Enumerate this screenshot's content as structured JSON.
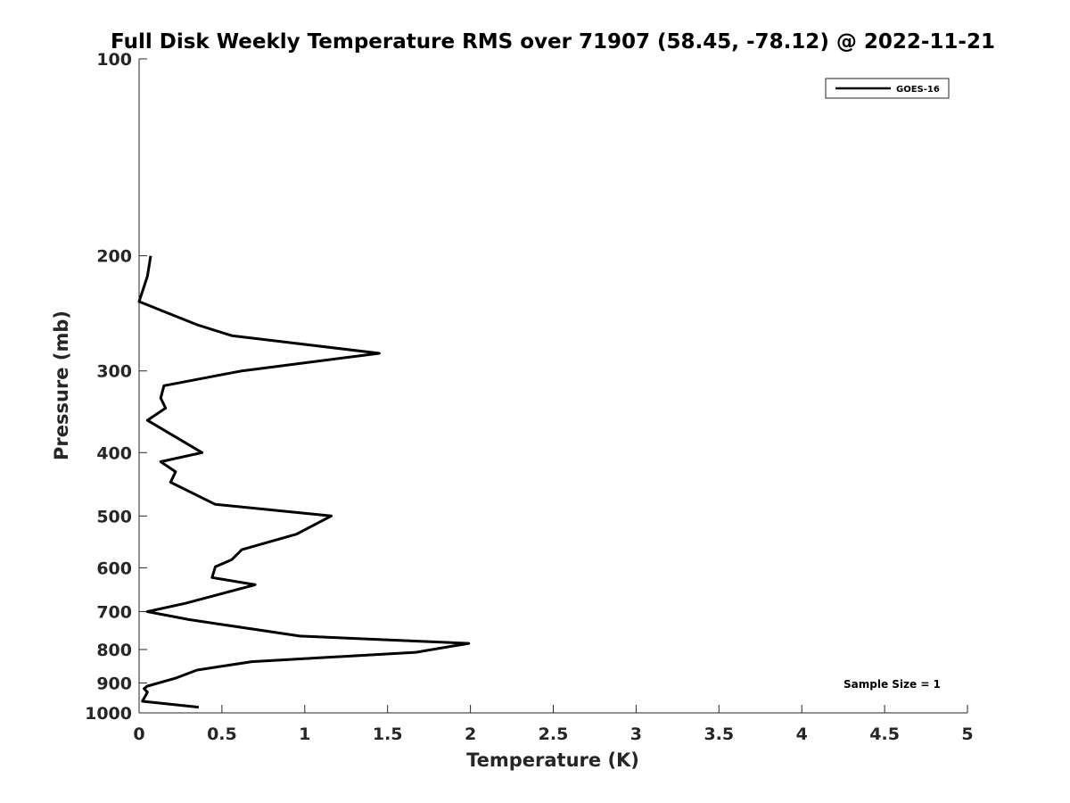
{
  "chart_data": {
    "type": "line",
    "title": "Full Disk Weekly Temperature RMS over 71907 (58.45, -78.12) @ 2022-11-21",
    "xlabel": "Temperature (K)",
    "ylabel": "Pressure (mb)",
    "xlim": [
      0,
      5
    ],
    "ylim": [
      100,
      1000
    ],
    "y_scale": "log",
    "y_reversed": true,
    "x_ticks": [
      "0",
      "0.5",
      "1",
      "1.5",
      "2",
      "2.5",
      "3",
      "3.5",
      "4",
      "4.5",
      "5"
    ],
    "y_ticks": [
      "100",
      "200",
      "300",
      "400",
      "500",
      "600",
      "700",
      "800",
      "900",
      "1000"
    ],
    "grid": false,
    "legend_position": "top-right",
    "annotation": "Sample Size = 1",
    "series": [
      {
        "name": "GOES-16",
        "color": "#000000",
        "x": [
          0.07,
          0.05,
          0.0,
          0.35,
          0.56,
          1.45,
          0.62,
          0.15,
          0.13,
          0.16,
          0.05,
          0.38,
          0.13,
          0.22,
          0.19,
          0.46,
          1.16,
          0.95,
          0.62,
          0.56,
          0.46,
          0.44,
          0.7,
          0.28,
          0.05,
          0.3,
          0.97,
          1.99,
          1.67,
          0.68,
          0.35,
          0.22,
          0.05,
          0.03,
          0.05,
          0.02,
          0.36
        ],
        "y": [
          200,
          215,
          235,
          255,
          265,
          282,
          300,
          316,
          330,
          342,
          357,
          400,
          413,
          428,
          444,
          480,
          500,
          533,
          563,
          583,
          598,
          621,
          637,
          680,
          700,
          720,
          763,
          783,
          808,
          835,
          860,
          885,
          910,
          918,
          930,
          960,
          980
        ]
      }
    ]
  }
}
